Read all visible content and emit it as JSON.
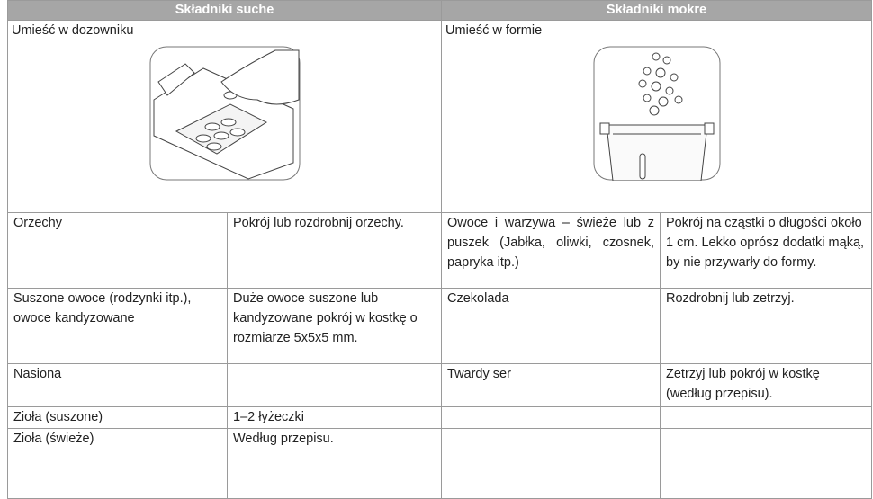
{
  "header": {
    "left": "Składniki suche",
    "right": "Składniki mokre"
  },
  "placement": {
    "left": "Umieść w dozowniku",
    "right": "Umieść w formie"
  },
  "rows": [
    [
      "Orzechy",
      "Pokrój lub rozdrobnij orzechy.",
      "Owoce i warzywa – świeże lub z puszek (Jabłka, oliwki, czosnek, papryka itp.)",
      "Pokrój na cząstki o długości około 1 cm. Lekko oprósz dodatki mąką, by nie przywarły do formy."
    ],
    [
      "Suszone owoce (rodzynki itp.), owoce kandyzowane",
      "Duże owoce suszone lub kandyzowane pokrój w kostkę o rozmiarze 5x5x5 mm.",
      "Czekolada",
      "Rozdrobnij lub zetrzyj."
    ],
    [
      "Nasiona",
      null,
      "Twardy ser",
      "Zetrzyj lub pokrój w kostkę (według przepisu)."
    ],
    [
      "Zioła (suszone)",
      "1–2 łyżeczki",
      null,
      null
    ],
    [
      "Zioła (świeże)",
      "Według przepisu.",
      null,
      null
    ]
  ]
}
